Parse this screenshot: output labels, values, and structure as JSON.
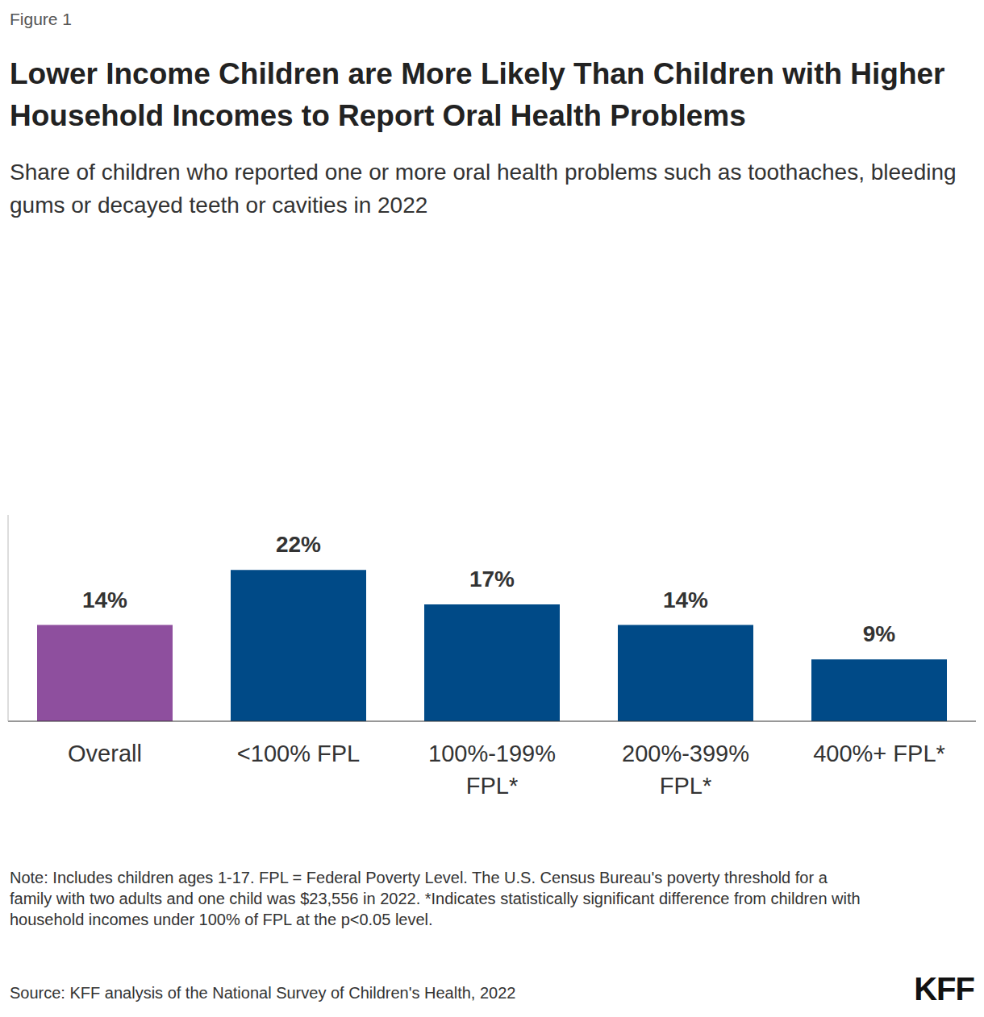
{
  "figure_label": "Figure 1",
  "chart_data": {
    "type": "bar",
    "title": "Lower Income Children are More Likely Than Children with Higher Household Incomes to Report Oral Health Problems",
    "subtitle": "Share of children who reported one or more oral health problems such as toothaches, bleeding gums or decayed teeth or cavities in 2022",
    "categories": [
      "Overall",
      "<100% FPL",
      "100%-199% FPL*",
      "200%-399% FPL*",
      "400%+ FPL*"
    ],
    "values": [
      14,
      22,
      17,
      14,
      9
    ],
    "value_labels": [
      "14%",
      "22%",
      "17%",
      "14%",
      "9%"
    ],
    "colors": [
      "#8e4f9e",
      "#004a87",
      "#004a87",
      "#004a87",
      "#004a87"
    ],
    "ylim": [
      0,
      30
    ],
    "grid": false,
    "data_labels": true,
    "tick_labels": "x"
  },
  "note": "Note: Includes children ages 1-17. FPL = Federal Poverty Level. The U.S. Census Bureau's poverty threshold for a family with two adults and one child was $23,556 in 2022. *Indicates statistically significant difference from children with household incomes under 100% of FPL at the p<0.05 level.",
  "source": "Source: KFF analysis of the National Survey of Children's Health, 2022",
  "logo": "KFF"
}
